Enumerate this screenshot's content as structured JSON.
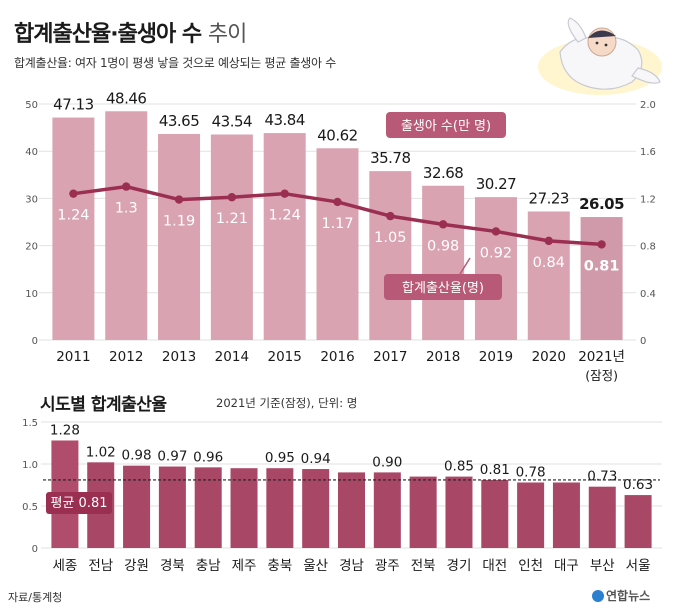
{
  "header": {
    "title_bold": "합계출산율·출생아 수",
    "title_light": "추이",
    "subtitle": "합계출산율: 여자 1명이 평생 낳을 것으로 예상되는 평균 출생아 수"
  },
  "chart_data": [
    {
      "type": "bar",
      "categories": [
        "2011",
        "2012",
        "2013",
        "2014",
        "2015",
        "2016",
        "2017",
        "2018",
        "2019",
        "2020",
        "2021년"
      ],
      "category_note": "(잠정)",
      "series": [
        {
          "name": "출생아 수(만 명)",
          "type": "bar",
          "values": [
            47.13,
            48.46,
            43.65,
            43.54,
            43.84,
            40.62,
            35.78,
            32.68,
            30.27,
            27.23,
            26.05
          ],
          "axis": "left"
        },
        {
          "name": "합계출산율(명)",
          "type": "line",
          "values": [
            1.24,
            1.3,
            1.19,
            1.21,
            1.24,
            1.17,
            1.05,
            0.98,
            0.92,
            0.84,
            0.81
          ],
          "axis": "right"
        }
      ],
      "ylim_left": [
        0,
        50
      ],
      "yticks_left": [
        "0",
        "10",
        "20",
        "30",
        "40",
        "50"
      ],
      "ylim_right": [
        0,
        2.0
      ],
      "yticks_right": [
        "0",
        "0.4",
        "0.8",
        "1.2",
        "1.6",
        "2.0"
      ],
      "grid": true,
      "colors": {
        "bar": "#d9a3b1",
        "bar_last": "#d19aaa",
        "line": "#9b2f52",
        "label_bg": "#b85a77"
      }
    },
    {
      "type": "bar",
      "title": "시도별 합계출산율",
      "note": "2021년 기준(잠정), 단위: 명",
      "categories": [
        "세종",
        "전남",
        "강원",
        "경북",
        "충남",
        "제주",
        "충북",
        "울산",
        "경남",
        "광주",
        "전북",
        "경기",
        "대전",
        "인천",
        "대구",
        "부산",
        "서울"
      ],
      "values": [
        1.28,
        1.02,
        0.98,
        0.97,
        0.96,
        0.95,
        0.95,
        0.94,
        0.9,
        0.9,
        0.85,
        0.85,
        0.81,
        0.78,
        0.78,
        0.73,
        0.63
      ],
      "value_labels": [
        "1.28",
        "1.02",
        "0.98",
        "0.97",
        "0.96",
        "",
        "0.95",
        "0.94",
        "",
        "0.90",
        "",
        "0.85",
        "0.81",
        "0.78",
        "",
        "0.73",
        "0.63"
      ],
      "ylim": [
        0,
        1.5
      ],
      "yticks": [
        "0",
        "0.5",
        "1.0",
        "1.5"
      ],
      "average": {
        "label": "평균 0.81",
        "value": 0.81
      },
      "grid": true,
      "colors": {
        "bar": "#a94767",
        "bar_first": "#b04c6c",
        "avg_label_bg": "#9b2f52"
      }
    }
  ],
  "footer": {
    "source": "자료/통계청",
    "credit": "연합뉴스"
  }
}
